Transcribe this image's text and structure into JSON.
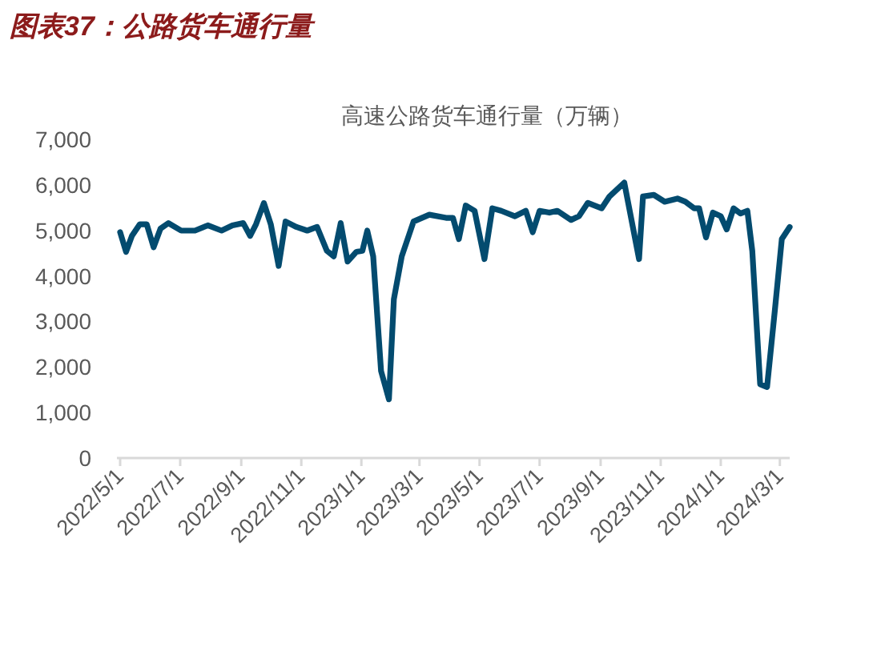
{
  "chart_data": {
    "type": "line",
    "title": "高速公路货车通行量（万辆）",
    "annotations": [
      "图表37：公路货车通行量"
    ],
    "x": [
      "2022-05-01",
      "2022-05-07",
      "2022-05-13",
      "2022-05-21",
      "2022-05-28",
      "2022-06-04",
      "2022-06-11",
      "2022-06-19",
      "2022-07-02",
      "2022-07-16",
      "2022-07-29",
      "2022-08-12",
      "2022-08-23",
      "2022-09-03",
      "2022-09-10",
      "2022-09-16",
      "2022-09-24",
      "2022-10-01",
      "2022-10-09",
      "2022-10-16",
      "2022-10-27",
      "2022-11-07",
      "2022-11-17",
      "2022-11-27",
      "2022-12-04",
      "2022-12-11",
      "2022-12-18",
      "2022-12-27",
      "2023-01-02",
      "2023-01-07",
      "2023-01-13",
      "2023-01-21",
      "2023-01-29",
      "2023-02-03",
      "2023-02-11",
      "2023-02-23",
      "2023-03-11",
      "2023-03-28",
      "2023-04-04",
      "2023-04-10",
      "2023-04-17",
      "2023-04-26",
      "2023-05-06",
      "2023-05-14",
      "2023-05-23",
      "2023-06-06",
      "2023-06-17",
      "2023-06-24",
      "2023-07-01",
      "2023-07-11",
      "2023-07-19",
      "2023-08-02",
      "2023-08-10",
      "2023-08-19",
      "2023-09-02",
      "2023-09-10",
      "2023-09-25",
      "2023-10-10",
      "2023-10-14",
      "2023-10-25",
      "2023-11-05",
      "2023-11-18",
      "2023-11-26",
      "2023-12-05",
      "2023-12-10",
      "2023-12-17",
      "2023-12-24",
      "2024-01-01",
      "2024-01-07",
      "2024-01-14",
      "2024-01-21",
      "2024-01-28",
      "2024-02-02",
      "2024-02-10",
      "2024-02-17",
      "2024-02-25",
      "2024-03-03",
      "2024-03-11"
    ],
    "series": [
      {
        "color": "#034b6f",
        "values": [
          4960,
          4530,
          4880,
          5135,
          5135,
          4630,
          5040,
          5160,
          4995,
          4995,
          5110,
          4995,
          5110,
          5160,
          4880,
          5135,
          5600,
          5135,
          4220,
          5195,
          5075,
          4995,
          5075,
          4550,
          4430,
          5160,
          4315,
          4530,
          4550,
          4995,
          4430,
          1910,
          1290,
          3490,
          4430,
          5195,
          5345,
          5275,
          5275,
          4810,
          5545,
          5430,
          4370,
          5485,
          5430,
          5310,
          5430,
          4960,
          5430,
          5390,
          5430,
          5230,
          5310,
          5605,
          5485,
          5745,
          6050,
          4370,
          5745,
          5780,
          5630,
          5700,
          5630,
          5485,
          5485,
          4845,
          5390,
          5310,
          5020,
          5485,
          5370,
          5430,
          4550,
          1620,
          1560,
          3260,
          4810,
          5075
        ]
      }
    ],
    "xlim": [
      "2022-05-01",
      "2024-03-11"
    ],
    "xticks": [
      {
        "value": "2022-05-01",
        "label": "2022/5/1"
      },
      {
        "value": "2022-07-01",
        "label": "2022/7/1"
      },
      {
        "value": "2022-09-01",
        "label": "2022/9/1"
      },
      {
        "value": "2022-11-01",
        "label": "2022/11/1"
      },
      {
        "value": "2023-01-01",
        "label": "2023/1/1"
      },
      {
        "value": "2023-03-01",
        "label": "2023/3/1"
      },
      {
        "value": "2023-05-01",
        "label": "2023/5/1"
      },
      {
        "value": "2023-07-01",
        "label": "2023/7/1"
      },
      {
        "value": "2023-09-01",
        "label": "2023/9/1"
      },
      {
        "value": "2023-11-01",
        "label": "2023/11/1"
      },
      {
        "value": "2024-01-01",
        "label": "2024/1/1"
      },
      {
        "value": "2024-03-01",
        "label": "2024/3/1"
      }
    ],
    "ylim": [
      0,
      7000
    ],
    "yticks": [
      0,
      {
        "value": 1000,
        "label": "1,000"
      },
      {
        "value": 2000,
        "label": "2,000"
      },
      {
        "value": 3000,
        "label": "3,000"
      },
      {
        "value": 4000,
        "label": "4,000"
      },
      {
        "value": 5000,
        "label": "5,000"
      },
      {
        "value": 6000,
        "label": "6,000"
      },
      {
        "value": 7000,
        "label": "7,000"
      }
    ],
    "grid": false,
    "marker": "none",
    "line_style": "solid"
  }
}
